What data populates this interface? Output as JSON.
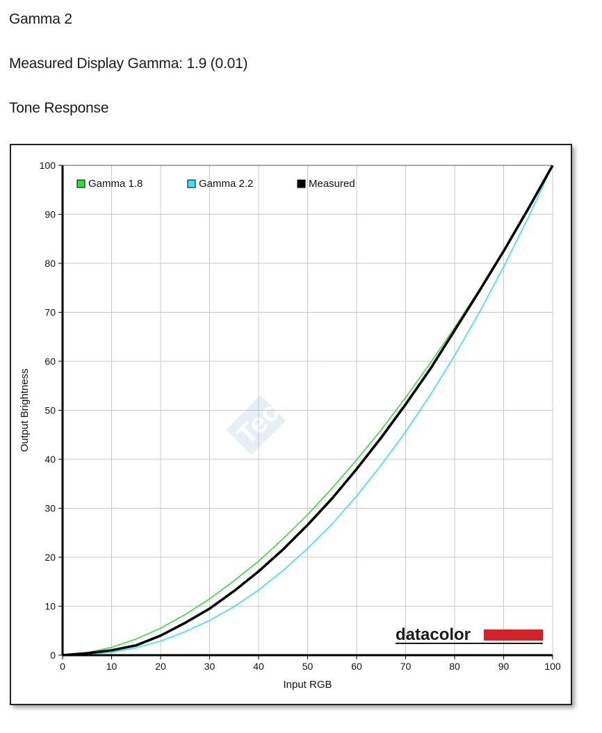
{
  "page": {
    "title": "Gamma 2",
    "measured_gamma": "Measured Display Gamma: 1.9 (0.01)",
    "section": "Tone Response"
  },
  "watermark": "Technews.lt",
  "chart_logo": "datacolor",
  "chart_data": {
    "type": "line",
    "xlabel": "Input RGB",
    "ylabel": "Output Brightness",
    "xlim": [
      0,
      100
    ],
    "ylim": [
      0,
      100
    ],
    "xticks": [
      0,
      10,
      20,
      30,
      40,
      50,
      60,
      70,
      80,
      90,
      100
    ],
    "yticks": [
      0,
      10,
      20,
      30,
      40,
      50,
      60,
      70,
      80,
      90,
      100
    ],
    "grid": true,
    "legend_position": "top-left",
    "series": [
      {
        "name": "Gamma 1.8",
        "color": "#33dd33",
        "x": [
          0,
          5,
          10,
          15,
          20,
          25,
          30,
          35,
          40,
          45,
          50,
          55,
          60,
          65,
          70,
          75,
          80,
          85,
          90,
          95,
          100
        ],
        "y": [
          0,
          0.5,
          1.6,
          3.3,
          5.5,
          8.3,
          11.5,
          15.2,
          19.2,
          23.8,
          28.7,
          34.1,
          39.9,
          46.0,
          52.6,
          59.6,
          66.9,
          74.6,
          82.7,
          91.2,
          100
        ]
      },
      {
        "name": "Gamma 2.2",
        "color": "#33e6f0",
        "x": [
          0,
          5,
          10,
          15,
          20,
          25,
          30,
          35,
          40,
          45,
          50,
          55,
          60,
          65,
          70,
          75,
          80,
          85,
          90,
          95,
          100
        ],
        "y": [
          0,
          0.1,
          0.6,
          1.5,
          2.9,
          4.8,
          7.1,
          9.9,
          13.3,
          17.3,
          21.8,
          26.8,
          32.5,
          38.8,
          45.6,
          53.1,
          61.2,
          69.9,
          79.3,
          89.3,
          100
        ]
      },
      {
        "name": "Measured",
        "color": "#000000",
        "x": [
          0,
          5,
          10,
          15,
          20,
          25,
          30,
          35,
          40,
          45,
          50,
          55,
          60,
          65,
          70,
          75,
          80,
          85,
          90,
          95,
          100
        ],
        "y": [
          0,
          0.4,
          1.0,
          2.0,
          4.0,
          6.6,
          9.5,
          13.1,
          17.1,
          21.6,
          26.6,
          32.0,
          38.0,
          44.4,
          51.2,
          58.4,
          66.3,
          74.3,
          82.5,
          91.1,
          100
        ]
      }
    ]
  }
}
